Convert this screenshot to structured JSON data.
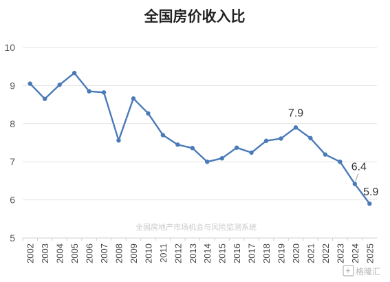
{
  "chart_data": {
    "type": "line",
    "title": "全国房价收入比",
    "xlabel": "",
    "ylabel": "",
    "ylim": [
      5,
      10
    ],
    "yticks": [
      5,
      6,
      7,
      8,
      9,
      10
    ],
    "grid": true,
    "legend": "none",
    "categories": [
      "2002",
      "2003",
      "2004",
      "2005",
      "2006",
      "2007",
      "2008",
      "2009",
      "2010",
      "2011",
      "2012",
      "2013",
      "2014",
      "2015",
      "2016",
      "2017",
      "2018",
      "2019",
      "2020",
      "2021",
      "2022",
      "2023",
      "2024",
      "2025"
    ],
    "series": [
      {
        "color": "#4a7ab8",
        "values": [
          9.05,
          8.65,
          9.02,
          9.33,
          8.85,
          8.82,
          7.56,
          8.66,
          8.27,
          7.7,
          7.45,
          7.36,
          7.0,
          7.09,
          7.37,
          7.24,
          7.55,
          7.61,
          7.9,
          7.62,
          7.19,
          7.0,
          6.42,
          5.9
        ]
      }
    ],
    "data_labels": [
      {
        "category": "2020",
        "text": "7.9"
      },
      {
        "category": "2024",
        "text": "6.4"
      },
      {
        "category": "2025",
        "text": "5.9"
      }
    ],
    "watermark": "全国房地产市场机会与风险监测系统"
  },
  "brand": {
    "logo_text": "格隆汇",
    "logo_icon": "gelonghui-logo-icon"
  }
}
